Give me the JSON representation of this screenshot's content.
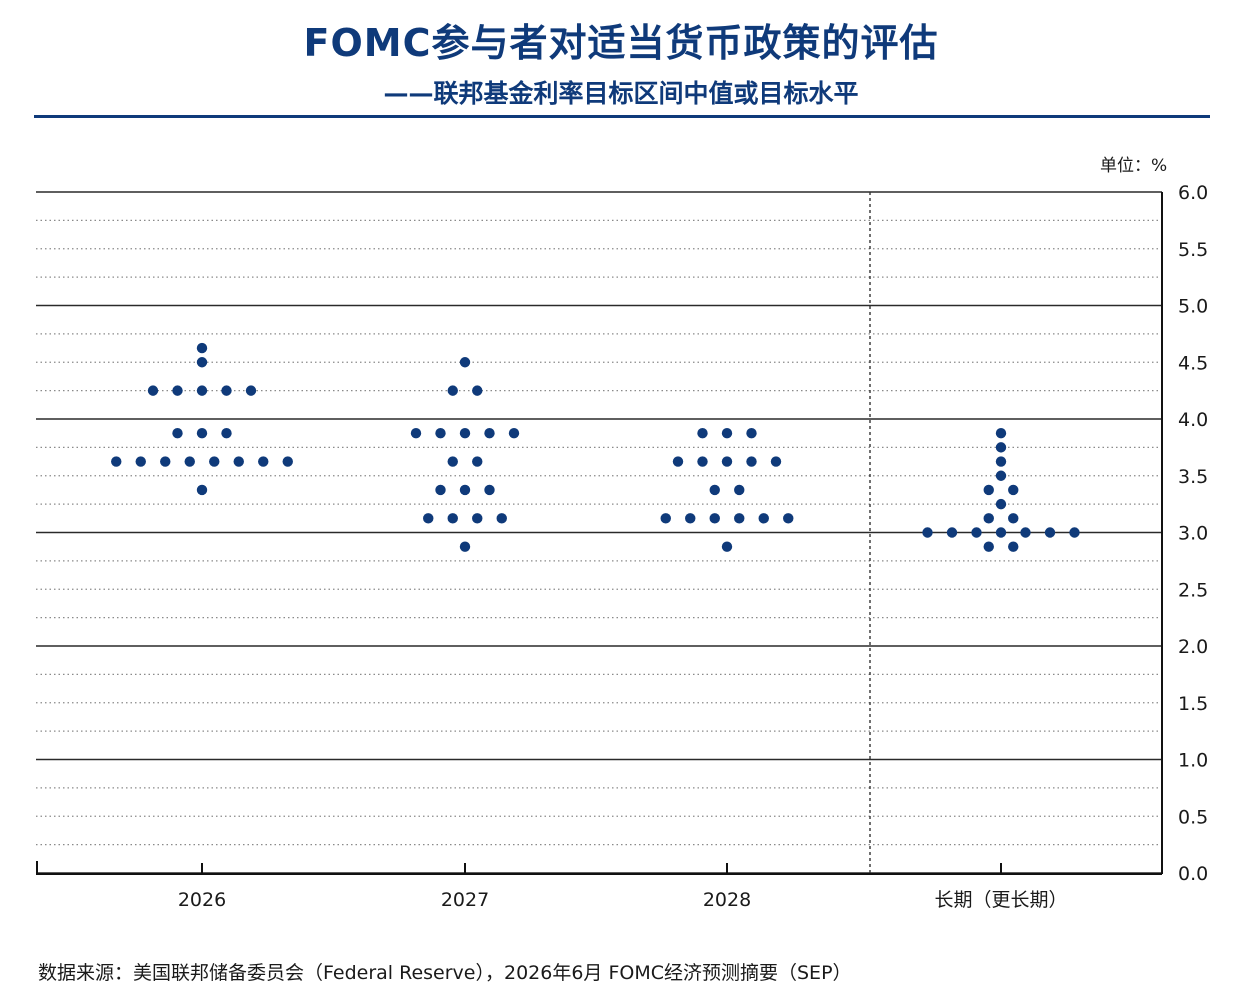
{
  "chart_data": {
    "type": "scatter",
    "title": "FOMC参与者对适当货币政策的评估",
    "subtitle": "——联邦基金利率目标区间中值或目标水平",
    "unit_label": "单位：%",
    "source": "数据来源：美国联邦储备委员会（Federal Reserve），2026年6月 FOMC经济预测摘要（SEP）",
    "categories": [
      "2026",
      "2027",
      "2028",
      "长期（更长期）"
    ],
    "y_ticks": [
      "0.0",
      "0.5",
      "1.0",
      "1.5",
      "2.0",
      "2.5",
      "3.0",
      "3.5",
      "4.0",
      "4.5",
      "5.0",
      "5.5",
      "6.0"
    ],
    "ylim": [
      0,
      6
    ],
    "y_axis_side": "right",
    "grid": "solid at whole numbers, dotted at 0.25 steps",
    "dot_color": "#0f3a7a",
    "dots": [
      {
        "category": "2026",
        "y": 4.625,
        "count": 1
      },
      {
        "category": "2026",
        "y": 4.5,
        "count": 1
      },
      {
        "category": "2026",
        "y": 4.25,
        "count": 5
      },
      {
        "category": "2026",
        "y": 3.875,
        "count": 3
      },
      {
        "category": "2026",
        "y": 3.625,
        "count": 8
      },
      {
        "category": "2026",
        "y": 3.375,
        "count": 1
      },
      {
        "category": "2027",
        "y": 4.5,
        "count": 1
      },
      {
        "category": "2027",
        "y": 4.25,
        "count": 2
      },
      {
        "category": "2027",
        "y": 3.875,
        "count": 5
      },
      {
        "category": "2027",
        "y": 3.625,
        "count": 2
      },
      {
        "category": "2027",
        "y": 3.375,
        "count": 3
      },
      {
        "category": "2027",
        "y": 3.125,
        "count": 4
      },
      {
        "category": "2027",
        "y": 2.875,
        "count": 1
      },
      {
        "category": "2028",
        "y": 3.875,
        "count": 3
      },
      {
        "category": "2028",
        "y": 3.625,
        "count": 5
      },
      {
        "category": "2028",
        "y": 3.375,
        "count": 2
      },
      {
        "category": "2028",
        "y": 3.125,
        "count": 6
      },
      {
        "category": "2028",
        "y": 2.875,
        "count": 1
      },
      {
        "category": "长期（更长期）",
        "y": 3.875,
        "count": 1
      },
      {
        "category": "长期（更长期）",
        "y": 3.75,
        "count": 1
      },
      {
        "category": "长期（更长期）",
        "y": 3.625,
        "count": 1
      },
      {
        "category": "长期（更长期）",
        "y": 3.5,
        "count": 1
      },
      {
        "category": "长期（更长期）",
        "y": 3.375,
        "count": 2
      },
      {
        "category": "长期（更长期）",
        "y": 3.25,
        "count": 1
      },
      {
        "category": "长期（更长期）",
        "y": 3.125,
        "count": 2
      },
      {
        "category": "长期（更长期）",
        "y": 3.0,
        "count": 7
      },
      {
        "category": "长期（更长期）",
        "y": 2.875,
        "count": 2
      }
    ]
  }
}
